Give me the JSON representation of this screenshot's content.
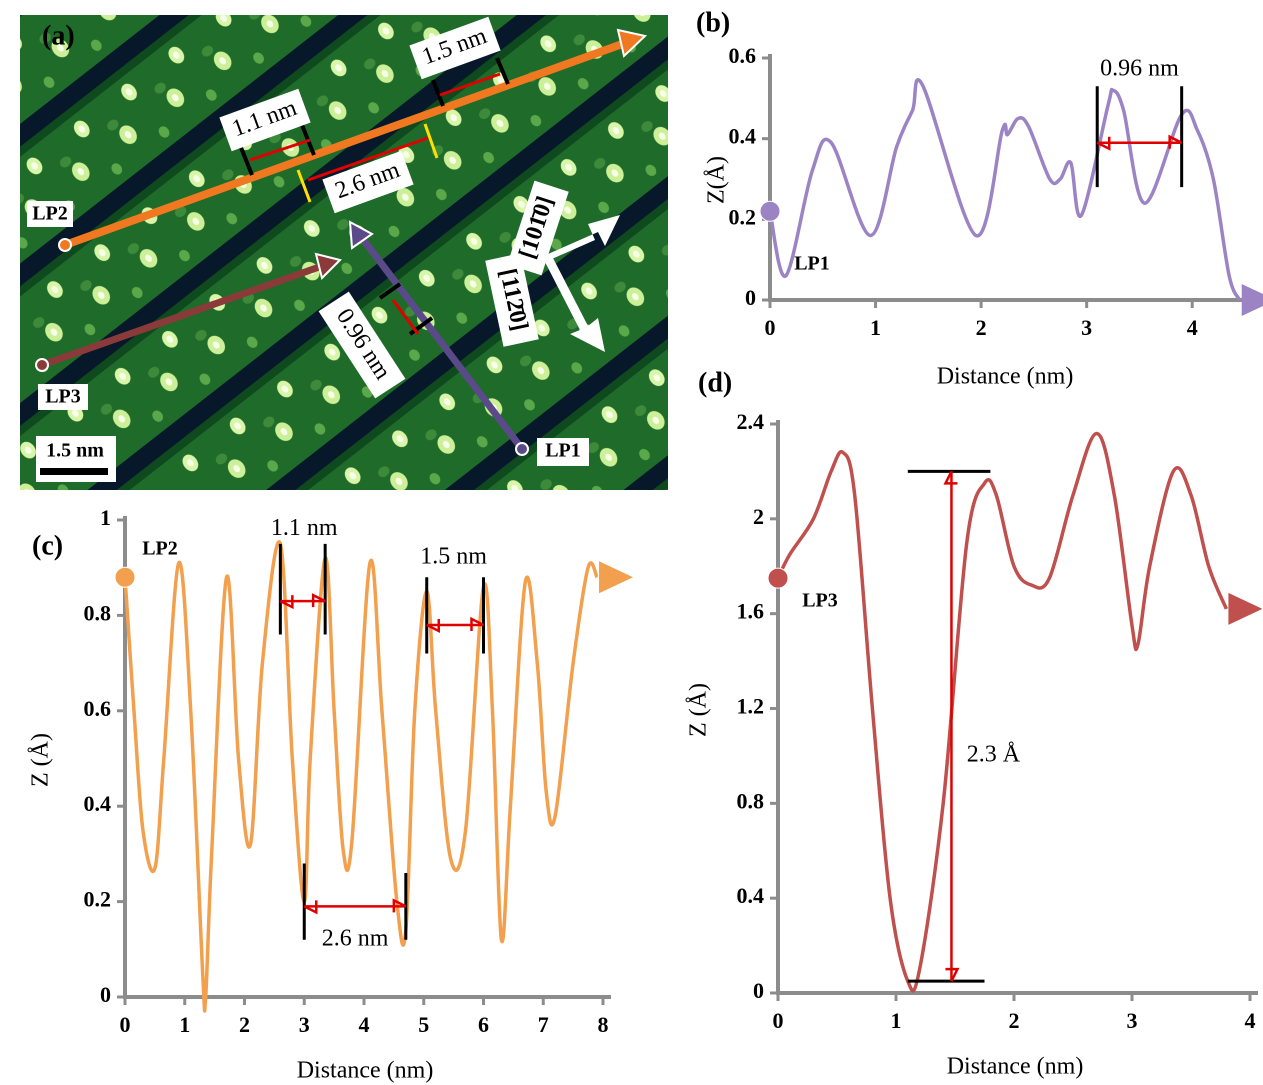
{
  "panel_a": {
    "label": "(a)",
    "scale_bar": "1.5 nm",
    "measure_1": "1.1 nm",
    "measure_2": "1.5 nm",
    "measure_3": "2.6 nm",
    "measure_4": "0.96 nm",
    "lp1": "LP1",
    "lp2": "LP2",
    "lp3": "LP3",
    "direction_1": "[101̄0]",
    "direction_2": "[112̄0]"
  },
  "chart_data": [
    {
      "type": "line",
      "panel_label": "(b)",
      "xlabel": "Distance (nm)",
      "ylabel": "Z(Å)",
      "x": [
        0,
        0.15,
        0.4,
        0.58,
        0.95,
        1.2,
        1.35,
        1.45,
        1.95,
        2.2,
        2.25,
        2.35,
        2.45,
        2.65,
        2.75,
        2.85,
        2.95,
        3.2,
        3.25,
        3.35,
        3.55,
        3.9,
        4.05,
        4.2,
        4.35,
        4.45
      ],
      "series": [
        {
          "name": "LP1",
          "color": "#9c84c4",
          "values": [
            0.22,
            0.06,
            0.32,
            0.39,
            0.16,
            0.38,
            0.47,
            0.53,
            0.16,
            0.42,
            0.41,
            0.45,
            0.43,
            0.3,
            0.3,
            0.34,
            0.21,
            0.48,
            0.52,
            0.47,
            0.24,
            0.46,
            0.42,
            0.3,
            0.06,
            0
          ]
        }
      ],
      "xlim": [
        0,
        4.5
      ],
      "ylim": [
        0,
        0.6
      ],
      "xticks": [
        0,
        1,
        2,
        3,
        4
      ],
      "yticks": [
        0,
        0.2,
        0.4,
        0.6
      ],
      "annotations": [
        {
          "text": "0.96 nm"
        }
      ]
    },
    {
      "type": "line",
      "panel_label": "(c)",
      "xlabel": "Distance (nm)",
      "ylabel": "Z (Å)",
      "x": [
        0,
        0.15,
        0.3,
        0.5,
        0.65,
        0.9,
        1.1,
        1.3,
        1.35,
        1.45,
        1.7,
        1.9,
        2.1,
        2.3,
        2.6,
        2.8,
        3.0,
        3.1,
        3.35,
        3.5,
        3.65,
        3.8,
        4.1,
        4.3,
        4.55,
        4.7,
        4.85,
        5.05,
        5.2,
        5.45,
        5.7,
        6.0,
        6.15,
        6.3,
        6.45,
        6.7,
        6.9,
        7.05,
        7.2,
        7.5,
        7.75,
        7.9
      ],
      "series": [
        {
          "name": "LP2",
          "color": "#f2a04e",
          "values": [
            0.88,
            0.6,
            0.35,
            0.27,
            0.5,
            0.91,
            0.6,
            0.05,
            0,
            0.3,
            0.88,
            0.5,
            0.32,
            0.7,
            0.95,
            0.5,
            0.2,
            0.5,
            0.92,
            0.6,
            0.31,
            0.33,
            0.91,
            0.6,
            0.2,
            0.14,
            0.6,
            0.85,
            0.6,
            0.29,
            0.35,
            0.86,
            0.6,
            0.12,
            0.4,
            0.87,
            0.7,
            0.43,
            0.38,
            0.7,
            0.9,
            0.88
          ]
        }
      ],
      "xlim": [
        0,
        8
      ],
      "ylim": [
        0,
        1
      ],
      "xticks": [
        0,
        1,
        2,
        3,
        4,
        5,
        6,
        7,
        8
      ],
      "yticks": [
        0,
        0.2,
        0.4,
        0.6,
        0.8,
        1
      ],
      "annotations": [
        {
          "text": "1.1 nm"
        },
        {
          "text": "1.5 nm"
        },
        {
          "text": "2.6 nm"
        }
      ]
    },
    {
      "type": "line",
      "panel_label": "(d)",
      "xlabel": "Distance (nm)",
      "ylabel": "Z (Å)",
      "x": [
        0,
        0.1,
        0.3,
        0.45,
        0.55,
        0.65,
        0.8,
        0.95,
        1.1,
        1.2,
        1.4,
        1.6,
        1.75,
        1.85,
        2.0,
        2.15,
        2.3,
        2.5,
        2.7,
        2.85,
        3.0,
        3.05,
        3.15,
        3.35,
        3.5,
        3.65,
        3.8
      ],
      "series": [
        {
          "name": "LP3",
          "color": "#c0504d",
          "values": [
            1.75,
            1.85,
            2.0,
            2.2,
            2.28,
            2.1,
            1.2,
            0.4,
            0.05,
            0.1,
            0.8,
            1.9,
            2.15,
            2.1,
            1.8,
            1.72,
            1.75,
            2.1,
            2.36,
            2.1,
            1.55,
            1.47,
            1.8,
            2.2,
            2.1,
            1.8,
            1.62
          ]
        }
      ],
      "xlim": [
        0,
        4
      ],
      "ylim": [
        0,
        2.4
      ],
      "xticks": [
        0,
        1,
        2,
        3,
        4
      ],
      "yticks": [
        0,
        0.4,
        0.8,
        1.2,
        1.6,
        2,
        2.4
      ],
      "annotations": [
        {
          "text": "2.3 Å"
        }
      ]
    }
  ]
}
